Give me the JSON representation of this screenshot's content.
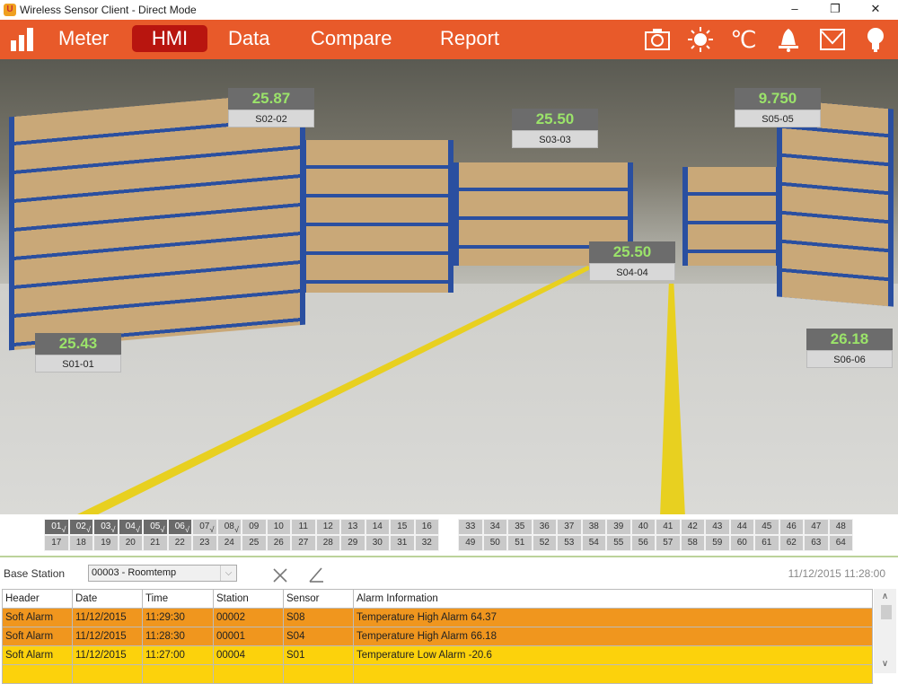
{
  "window": {
    "title": "Wireless Sensor Client - Direct Mode",
    "minimize": "–",
    "restore": "❐",
    "close": "✕"
  },
  "nav": {
    "items": [
      {
        "label": "Meter"
      },
      {
        "label": "HMI",
        "active": true
      },
      {
        "label": "Data"
      },
      {
        "label": "Compare"
      },
      {
        "label": "Report"
      }
    ],
    "icons": [
      "camera-icon",
      "sun-icon",
      "celsius-icon",
      "bell-icon",
      "mail-icon",
      "bulb-icon"
    ],
    "celsius": "℃",
    "accent": "#e85a2a",
    "active_color": "#b8150f"
  },
  "sensors": [
    {
      "value": "25.87",
      "name": "S02-02"
    },
    {
      "value": "25.50",
      "name": "S03-03"
    },
    {
      "value": "9.750",
      "name": "S05-05"
    },
    {
      "value": "25.50",
      "name": "S04-04"
    },
    {
      "value": "25.43",
      "name": "S01-01"
    },
    {
      "value": "26.18",
      "name": "S06-06"
    }
  ],
  "channels": {
    "active": [
      "01",
      "02",
      "03",
      "04",
      "05",
      "06"
    ],
    "checked": [
      "01",
      "02",
      "03",
      "04",
      "05",
      "06",
      "07",
      "08"
    ],
    "check_mark": "√"
  },
  "base_station": {
    "label": "Base Station",
    "selected": "00003 - Roomtemp",
    "clock": "11/12/2015 11:28:00"
  },
  "alarms": {
    "columns": [
      "Header",
      "Date",
      "Time",
      "Station",
      "Sensor",
      "Alarm Information"
    ],
    "rows": [
      {
        "cells": [
          "Soft Alarm",
          "11/12/2015",
          "11:29:30",
          "00002",
          "S08",
          "Temperature High Alarm 64.37"
        ],
        "color": "orange"
      },
      {
        "cells": [
          "Soft Alarm",
          "11/12/2015",
          "11:28:30",
          "00001",
          "S04",
          "Temperature High Alarm 66.18"
        ],
        "color": "orange"
      },
      {
        "cells": [
          "Soft Alarm",
          "11/12/2015",
          "11:27:00",
          "00004",
          "S01",
          "Temperature Low Alarm -20.6"
        ],
        "color": "yellow"
      }
    ]
  }
}
